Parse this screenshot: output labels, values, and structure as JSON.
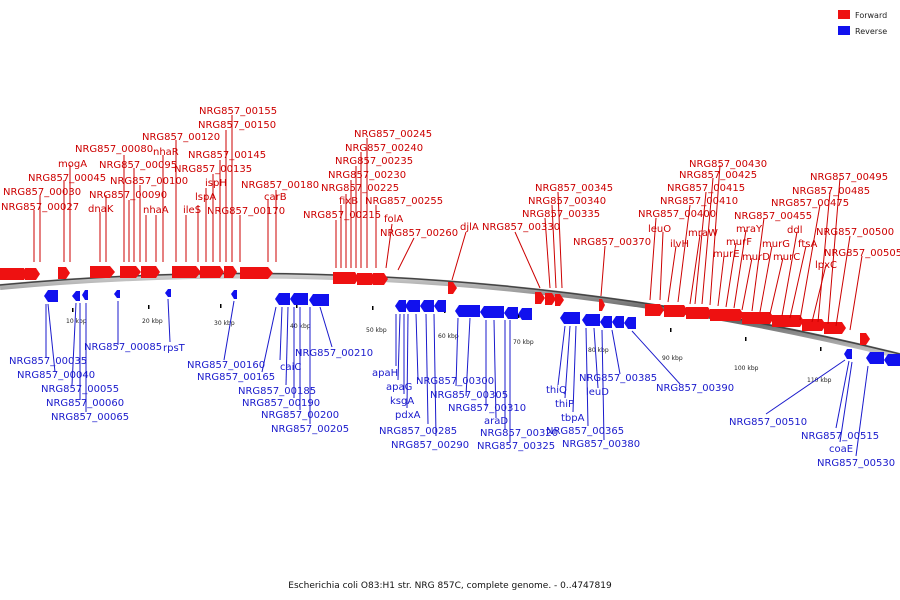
{
  "caption": "Escherichia coli O83:H1 str. NRG 857C, complete genome. - 0..4747819",
  "legend": [
    {
      "label": "Forward",
      "color": "#ee1111"
    },
    {
      "label": "Reverse",
      "color": "#1111ee"
    }
  ],
  "colors": {
    "forward": "#ee1111",
    "reverse": "#1111ee",
    "forward_label": "#cc0000",
    "reverse_label": "#1a1acc",
    "backbone": "#777777"
  },
  "scale_ticks": [
    "10 kbp",
    "20 kbp",
    "30 kbp",
    "40 kbp",
    "50 kbp",
    "60 kbp",
    "70 kbp",
    "80 kbp",
    "90 kbp",
    "100 kbp",
    "110 kbp"
  ],
  "forward_genes": [
    "NRG857_00027",
    "NRG857_00030",
    "NRG857_00045",
    "mogA",
    "NRG857_00080",
    "dnaK",
    "NRG857_00090",
    "NRG857_00095",
    "NRG857_00100",
    "nhaR",
    "nhaA",
    "NRG857_00120",
    "ileS",
    "lspA",
    "ispH",
    "NRG857_00135",
    "NRG857_00145",
    "NRG857_00150",
    "NRG857_00155",
    "NRG857_00170",
    "carB",
    "NRG857_00180",
    "NRG857_00215",
    "fixB",
    "NRG857_00225",
    "NRG857_00230",
    "NRG857_00235",
    "NRG857_00240",
    "NRG857_00245",
    "NRG857_00255",
    "folA",
    "NRG857_00260",
    "djlA",
    "NRG857_00330",
    "NRG857_00335",
    "NRG857_00340",
    "NRG857_00345",
    "NRG857_00370",
    "NRG857_00400",
    "leuO",
    "ilvH",
    "NRG857_00410",
    "mraW",
    "NRG857_00415",
    "NRG857_00425",
    "NRG857_00430",
    "murE",
    "murF",
    "mraY",
    "murD",
    "murG",
    "NRG857_00455",
    "murC",
    "ddl",
    "ftsA",
    "NRG857_00475",
    "lpxC",
    "NRG857_00485",
    "NRG857_00495",
    "NRG857_00500",
    "NRG857_00505"
  ],
  "reverse_genes": [
    "NRG857_00035",
    "NRG857_00040",
    "NRG857_00055",
    "NRG857_00060",
    "NRG857_00065",
    "NRG857_00085",
    "rpsT",
    "NRG857_00160",
    "NRG857_00165",
    "caiC",
    "NRG857_00185",
    "NRG857_00190",
    "NRG857_00200",
    "NRG857_00205",
    "NRG857_00210",
    "apaH",
    "apaG",
    "ksgA",
    "pdxA",
    "NRG857_00285",
    "NRG857_00290",
    "NRG857_00300",
    "NRG857_00305",
    "NRG857_00310",
    "araD",
    "NRG857_00320",
    "NRG857_00325",
    "thiQ",
    "thiP",
    "tbpA",
    "leuD",
    "NRG857_00365",
    "NRG857_00380",
    "NRG857_00385",
    "NRG857_00390",
    "NRG857_00510",
    "NRG857_00515",
    "coaE",
    "NRG857_00530"
  ]
}
